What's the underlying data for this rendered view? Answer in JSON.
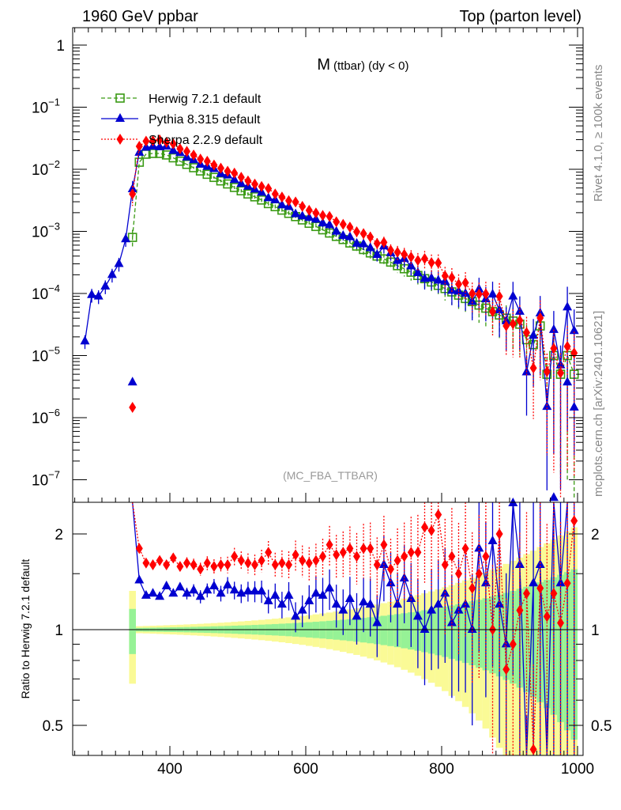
{
  "header": {
    "left": "1960 GeV ppbar",
    "right": "Top (parton level)"
  },
  "side_text": {
    "top": "Rivet 4.1.0, ≥ 100k events",
    "bottom": "mcplots.cern.ch [arXiv:2401.10621]"
  },
  "chart_data": {
    "type": "line",
    "title_main": "M",
    "title_sub": "(ttbar) (dy < 0)",
    "analysis_label": "(MC_FBA_TTBAR)",
    "xlabel": "",
    "ylabel_ratio": "Ratio to Herwig 7.2.1 default",
    "xlim": [
      257,
      1008
    ],
    "ylim": [
      2.3e-08,
      1.9
    ],
    "ylim_ratio": [
      0.4,
      2.52
    ],
    "yscale": "log",
    "x_ticks": [
      400,
      600,
      800,
      1000
    ],
    "y_ticks": [
      {
        "v": 1,
        "b": "1",
        "e": ""
      },
      {
        "v": 0.1,
        "b": "10",
        "e": "−1"
      },
      {
        "v": 0.01,
        "b": "10",
        "e": "−2"
      },
      {
        "v": 0.001,
        "b": "10",
        "e": "−3"
      },
      {
        "v": 0.0001,
        "b": "10",
        "e": "−4"
      },
      {
        "v": 1e-05,
        "b": "10",
        "e": "−5"
      },
      {
        "v": 1e-06,
        "b": "10",
        "e": "−6"
      },
      {
        "v": 1e-07,
        "b": "10",
        "e": "−7"
      }
    ],
    "ratio_ticks": [
      {
        "v": 2,
        "l": "2"
      },
      {
        "v": 1,
        "l": "1"
      },
      {
        "v": 0.5,
        "l": "0.5"
      }
    ],
    "legend": "top-left",
    "colors": {
      "herwig": "#3a9a14",
      "pythia": "#0000d0",
      "sherpa": "#ff0000",
      "band_inner": "#96f296",
      "band_outer": "#fafa96"
    },
    "reference_band": {
      "inner_rel_err_at_345": 0.012,
      "growth_scale_gev": 170,
      "outer_factor": 2.0
    },
    "series": [
      {
        "name": "Herwig 7.2.1 default",
        "key": "herwig",
        "x_start": 345,
        "x_step": 10,
        "values": [
          0.0008,
          0.013,
          0.0175,
          0.018,
          0.018,
          0.017,
          0.0153,
          0.0135,
          0.012,
          0.0106,
          0.0094,
          0.0083,
          0.0074,
          0.0065,
          0.0058,
          0.0051,
          0.0045,
          0.004,
          0.0036,
          0.0032,
          0.0028,
          0.0025,
          0.0022,
          0.00195,
          0.00173,
          0.00153,
          0.00135,
          0.0012,
          0.00106,
          0.00094,
          0.00083,
          0.00074,
          0.00065,
          0.00058,
          0.00051,
          0.00045,
          0.0004,
          0.00036,
          0.00032,
          0.00028,
          0.00025,
          0.00022,
          0.000195,
          0.000173,
          0.000153,
          0.000135,
          0.00012,
          0.000106,
          9.4e-05,
          8.3e-05,
          7.4e-05,
          6.5e-05,
          5.8e-05,
          5.1e-05,
          4.5e-05,
          4e-05,
          3.6e-05,
          3.2e-05,
          1.8e-05,
          1.5e-05,
          3e-05,
          5e-06,
          1e-05,
          5e-06,
          1e-05,
          5e-06
        ]
      },
      {
        "name": "Pythia 8.315 default",
        "key": "pythia",
        "x_start": 275,
        "x_step": 10,
        "low_mass_values": [
          1.7e-05,
          9.5e-05,
          9e-05,
          0.00013,
          0.0002,
          0.0003,
          0.00075
        ],
        "ratio_to_herwig": [
          6.0,
          1.43,
          1.28,
          1.3,
          1.27,
          1.37,
          1.3,
          1.36,
          1.3,
          1.33,
          1.27,
          1.33,
          1.37,
          1.3,
          1.38,
          1.33,
          1.3,
          1.32,
          1.32,
          1.32,
          1.23,
          1.28,
          1.2,
          1.28,
          1.1,
          1.15,
          1.23,
          1.3,
          1.28,
          1.35,
          1.2,
          1.15,
          1.25,
          1.1,
          1.22,
          1.2,
          1.05,
          1.6,
          1.4,
          1.2,
          1.45,
          1.25,
          1.1,
          1.0,
          1.15,
          1.2,
          1.3,
          1.05,
          1.15,
          1.2,
          1.0,
          1.8,
          1.4,
          1.9,
          1.2,
          0.9,
          2.5,
          1.6,
          0.3,
          1.4,
          1.6,
          0.3,
          2.6,
          1.4,
          6.0,
          5.0
        ]
      },
      {
        "name": "Sherpa 2.2.9 default",
        "key": "sherpa",
        "x_start": 345,
        "x_step": 10,
        "ratio_to_herwig": [
          5.0,
          1.8,
          1.62,
          1.6,
          1.65,
          1.6,
          1.68,
          1.58,
          1.62,
          1.6,
          1.55,
          1.62,
          1.58,
          1.6,
          1.6,
          1.7,
          1.65,
          1.62,
          1.6,
          1.65,
          1.75,
          1.6,
          1.62,
          1.6,
          1.72,
          1.65,
          1.62,
          1.65,
          1.7,
          1.85,
          1.72,
          1.75,
          1.8,
          1.7,
          1.8,
          1.8,
          1.6,
          1.85,
          1.55,
          1.65,
          1.7,
          1.75,
          1.75,
          2.1,
          2.05,
          2.3,
          1.6,
          1.7,
          1.5,
          1.8,
          1.35,
          1.5,
          1.7,
          1.0,
          2.0,
          0.75,
          0.9,
          1.15,
          1.3,
          0.42,
          1.35,
          1.1,
          1.3,
          1.05,
          1.4,
          2.2
        ]
      }
    ]
  }
}
